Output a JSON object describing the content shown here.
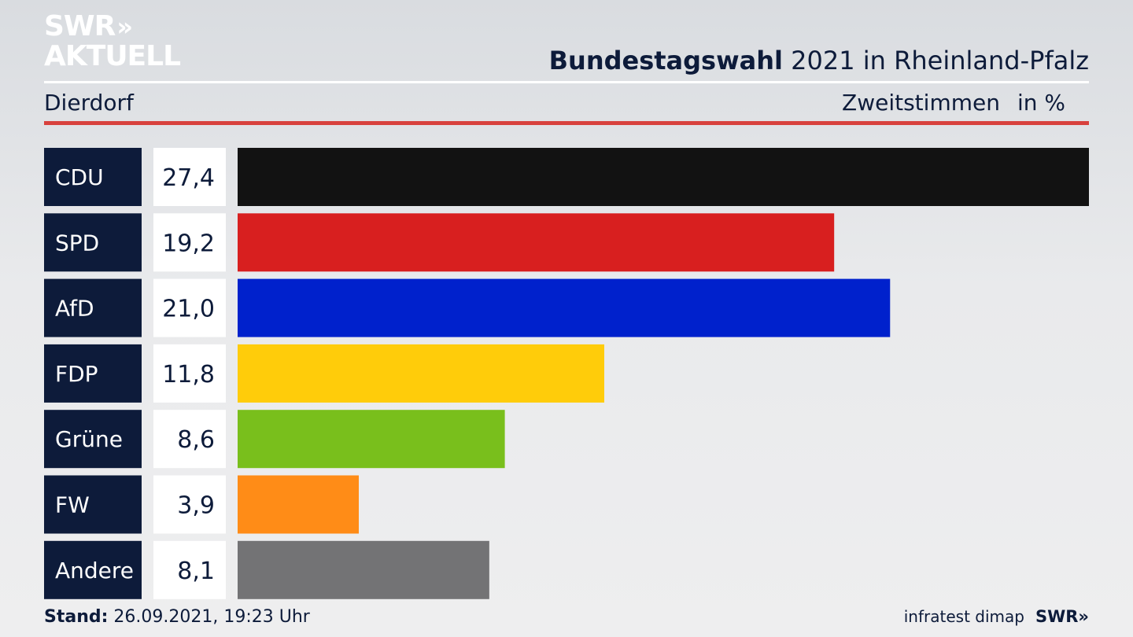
{
  "logo": {
    "line1": "SWR",
    "line2": "AKTUELL"
  },
  "header": {
    "title_bold": "Bundestagswahl",
    "title_rest": " 2021 in Rheinland-Pfalz",
    "region": "Dierdorf",
    "measure": "Zweitstimmen",
    "unit": "in %"
  },
  "footer": {
    "stand_label": "Stand:",
    "stand_value": " 26.09.2021, 19:23 Uhr",
    "source": "infratest dimap",
    "brand": "SWR"
  },
  "chart_data": {
    "type": "bar",
    "orientation": "horizontal",
    "categories": [
      "CDU",
      "SPD",
      "AfD",
      "FDP",
      "Grüne",
      "FW",
      "Andere"
    ],
    "values": [
      27.4,
      19.2,
      21.0,
      11.8,
      8.6,
      3.9,
      8.1
    ],
    "value_labels": [
      "27,4",
      "19,2",
      "21,0",
      "11,8",
      "8,6",
      "3,9",
      "8,1"
    ],
    "colors": [
      "#121212",
      "#d81f1f",
      "#0021cc",
      "#ffcc0a",
      "#79bf1c",
      "#ff8c17",
      "#737375"
    ],
    "xlim": [
      0,
      27.4
    ],
    "grid": false
  }
}
